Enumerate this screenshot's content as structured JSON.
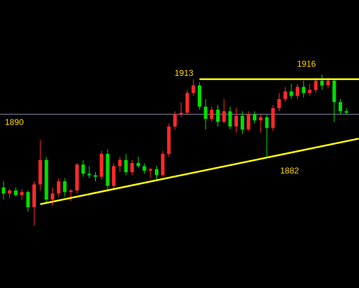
{
  "chart_data": {
    "type": "candlestick",
    "ohlc": [
      [
        1842,
        1846,
        1834,
        1838
      ],
      [
        1838,
        1841,
        1835,
        1840
      ],
      [
        1840,
        1842,
        1836,
        1837
      ],
      [
        1837,
        1841,
        1834,
        1839
      ],
      [
        1839,
        1840,
        1826,
        1829
      ],
      [
        1829,
        1846,
        1817,
        1844
      ],
      [
        1844,
        1873,
        1840,
        1860
      ],
      [
        1860,
        1862,
        1832,
        1834
      ],
      [
        1834,
        1842,
        1830,
        1838
      ],
      [
        1838,
        1848,
        1836,
        1846
      ],
      [
        1846,
        1848,
        1836,
        1839
      ],
      [
        1839,
        1841,
        1833,
        1840
      ],
      [
        1840,
        1858,
        1838,
        1857
      ],
      [
        1857,
        1860,
        1849,
        1851
      ],
      [
        1851,
        1856,
        1848,
        1850
      ],
      [
        1850,
        1852,
        1846,
        1849
      ],
      [
        1849,
        1866,
        1847,
        1864
      ],
      [
        1864,
        1867,
        1840,
        1843
      ],
      [
        1843,
        1858,
        1841,
        1856
      ],
      [
        1856,
        1862,
        1852,
        1860
      ],
      [
        1860,
        1864,
        1850,
        1852
      ],
      [
        1852,
        1860,
        1850,
        1858
      ],
      [
        1858,
        1862,
        1855,
        1856
      ],
      [
        1856,
        1858,
        1851,
        1853
      ],
      [
        1853,
        1855,
        1848,
        1854
      ],
      [
        1854,
        1856,
        1847,
        1850
      ],
      [
        1850,
        1866,
        1849,
        1864
      ],
      [
        1864,
        1884,
        1862,
        1882
      ],
      [
        1882,
        1892,
        1880,
        1890
      ],
      [
        1890,
        1898,
        1888,
        1891
      ],
      [
        1891,
        1906,
        1890,
        1904
      ],
      [
        1904,
        1913,
        1902,
        1909
      ],
      [
        1909,
        1911,
        1893,
        1895
      ],
      [
        1895,
        1900,
        1880,
        1887
      ],
      [
        1887,
        1895,
        1885,
        1893
      ],
      [
        1893,
        1896,
        1882,
        1885
      ],
      [
        1885,
        1900,
        1884,
        1892
      ],
      [
        1892,
        1895,
        1880,
        1882
      ],
      [
        1882,
        1894,
        1878,
        1889
      ],
      [
        1889,
        1892,
        1877,
        1880
      ],
      [
        1880,
        1892,
        1879,
        1890
      ],
      [
        1890,
        1892,
        1884,
        1886
      ],
      [
        1886,
        1890,
        1878,
        1888
      ],
      [
        1888,
        1890,
        1862,
        1881
      ],
      [
        1881,
        1896,
        1879,
        1894
      ],
      [
        1894,
        1904,
        1892,
        1900
      ],
      [
        1900,
        1908,
        1898,
        1905
      ],
      [
        1905,
        1910,
        1900,
        1902
      ],
      [
        1902,
        1910,
        1900,
        1908
      ],
      [
        1908,
        1912,
        1901,
        1904
      ],
      [
        1904,
        1910,
        1902,
        1906
      ],
      [
        1906,
        1914,
        1904,
        1912
      ],
      [
        1912,
        1916,
        1906,
        1909
      ],
      [
        1909,
        1914,
        1907,
        1912
      ],
      [
        1912,
        1913,
        1885,
        1898
      ],
      [
        1898,
        1900,
        1890,
        1892
      ],
      [
        1892,
        1894,
        1890,
        1891
      ]
    ],
    "up_color": "#ff2a2a",
    "down_color": "#00e000",
    "ylim": [
      1776,
      1965
    ],
    "resistance": {
      "value": 1913,
      "from": 32,
      "color": "#ffff00"
    },
    "level": {
      "value": 1890,
      "color": "#8c8cb4"
    },
    "trendline": {
      "points": [
        [
          6,
          1831
        ],
        [
          58,
          1874
        ]
      ],
      "color": "#ffff00"
    },
    "annotations": [
      "1913",
      "1916",
      "1890",
      "1882"
    ],
    "annotation_color": "#ffd700"
  }
}
